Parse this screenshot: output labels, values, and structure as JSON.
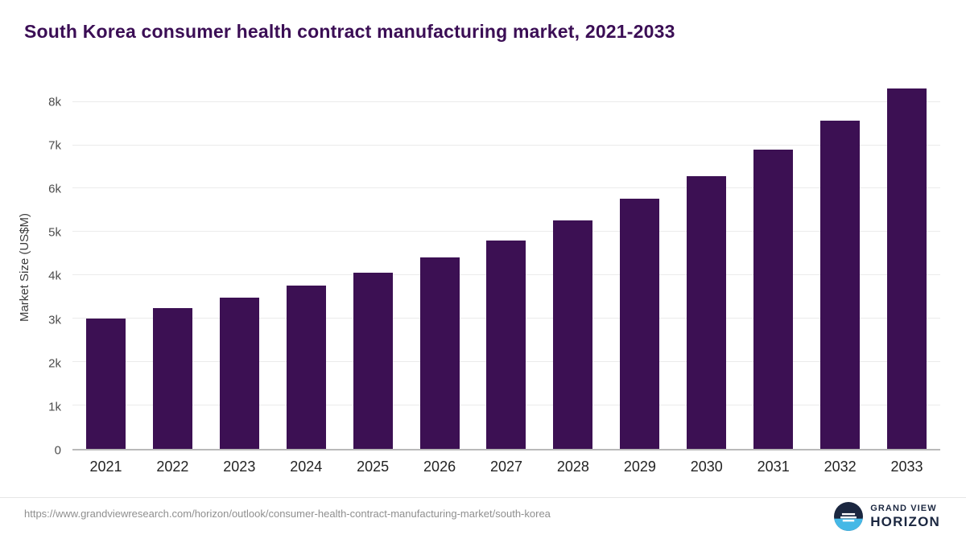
{
  "title": "South Korea consumer health contract manufacturing market, 2021-2033",
  "footer": {
    "url": "https://www.grandviewresearch.com/horizon/outlook/consumer-health-contract-manufacturing-market/south-korea",
    "brand_line1": "GRAND VIEW",
    "brand_line2": "HORIZON"
  },
  "colors": {
    "bar": "#3c1053",
    "title": "#3b0e55",
    "logo_navy": "#1b2740",
    "logo_blue": "#45b8e6"
  },
  "chart_data": {
    "type": "bar",
    "title": "South Korea consumer health contract manufacturing market, 2021-2033",
    "categories": [
      "2021",
      "2022",
      "2023",
      "2024",
      "2025",
      "2026",
      "2027",
      "2028",
      "2029",
      "2030",
      "2031",
      "2032",
      "2033"
    ],
    "values": [
      3010,
      3250,
      3480,
      3760,
      4070,
      4420,
      4810,
      5270,
      5760,
      6290,
      6900,
      7560,
      8300
    ],
    "xlabel": "",
    "ylabel": "Market Size (US$M)",
    "ylim": [
      0,
      8400
    ],
    "yticks": [
      {
        "value": 0,
        "label": "0"
      },
      {
        "value": 1000,
        "label": "1k"
      },
      {
        "value": 2000,
        "label": "2k"
      },
      {
        "value": 3000,
        "label": "3k"
      },
      {
        "value": 4000,
        "label": "4k"
      },
      {
        "value": 5000,
        "label": "5k"
      },
      {
        "value": 6000,
        "label": "6k"
      },
      {
        "value": 7000,
        "label": "7k"
      },
      {
        "value": 8000,
        "label": "8k"
      }
    ],
    "grid": true,
    "legend": false,
    "bar_color": "#3c1053"
  }
}
